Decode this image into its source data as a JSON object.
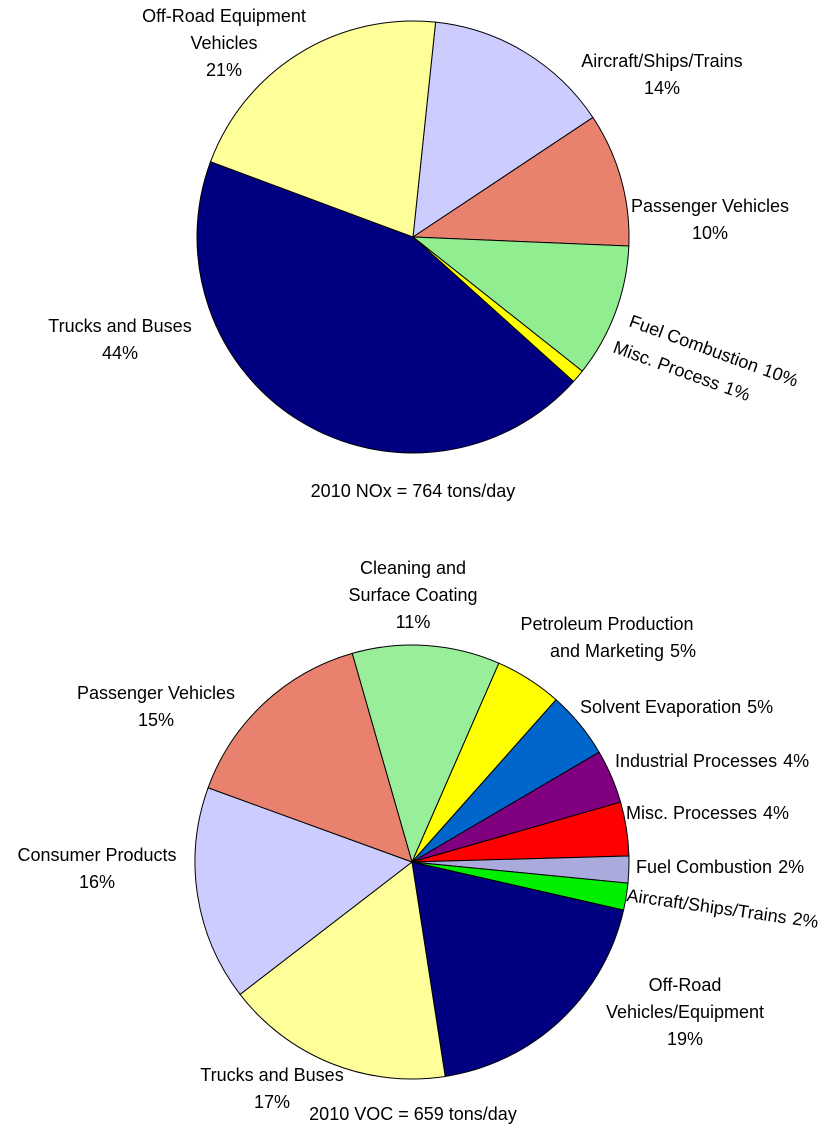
{
  "chart_data": [
    {
      "type": "pie",
      "title": "2010 NOx = 764 tons/day",
      "categories": [
        "Aircraft/Ships/Trains",
        "Passenger Vehicles",
        "Fuel Combustion",
        "Misc. Process",
        "Trucks and Buses",
        "Off-Road Equipment\nVehicles"
      ],
      "values": [
        14,
        10,
        10,
        1,
        44,
        21
      ],
      "value_labels": [
        "14%",
        "10%",
        "10%",
        "1%",
        "44%",
        "21%"
      ],
      "colors": [
        "#ccccff",
        "#e8826e",
        "#90ee90",
        "#ffff00",
        "#000080",
        "#ffff99"
      ]
    },
    {
      "type": "pie",
      "title": "2010 VOC = 659 tons/day",
      "categories": [
        "Cleaning and\nSurface Coating",
        "Petroleum Production\nand Marketing",
        "Solvent Evaporation",
        "Industrial Processes",
        "Misc. Processes",
        "Fuel Combustion",
        "Aircraft/Ships/Trains",
        "Off-Road\nVehicles/Equipment",
        "Trucks and Buses",
        "Consumer Products",
        "Passenger Vehicles"
      ],
      "values": [
        11,
        5,
        5,
        4,
        4,
        2,
        2,
        19,
        17,
        16,
        15
      ],
      "value_labels": [
        "11%",
        "5%",
        "5%",
        "4%",
        "4%",
        "2%",
        "2%",
        "19%",
        "17%",
        "16%",
        "15%"
      ],
      "colors": [
        "#99ee99",
        "#ffff00",
        "#0066cc",
        "#800080",
        "#ff0000",
        "#aaaadd",
        "#00ee00",
        "#000080",
        "#ffff99",
        "#ccccff",
        "#e8826e"
      ]
    }
  ]
}
